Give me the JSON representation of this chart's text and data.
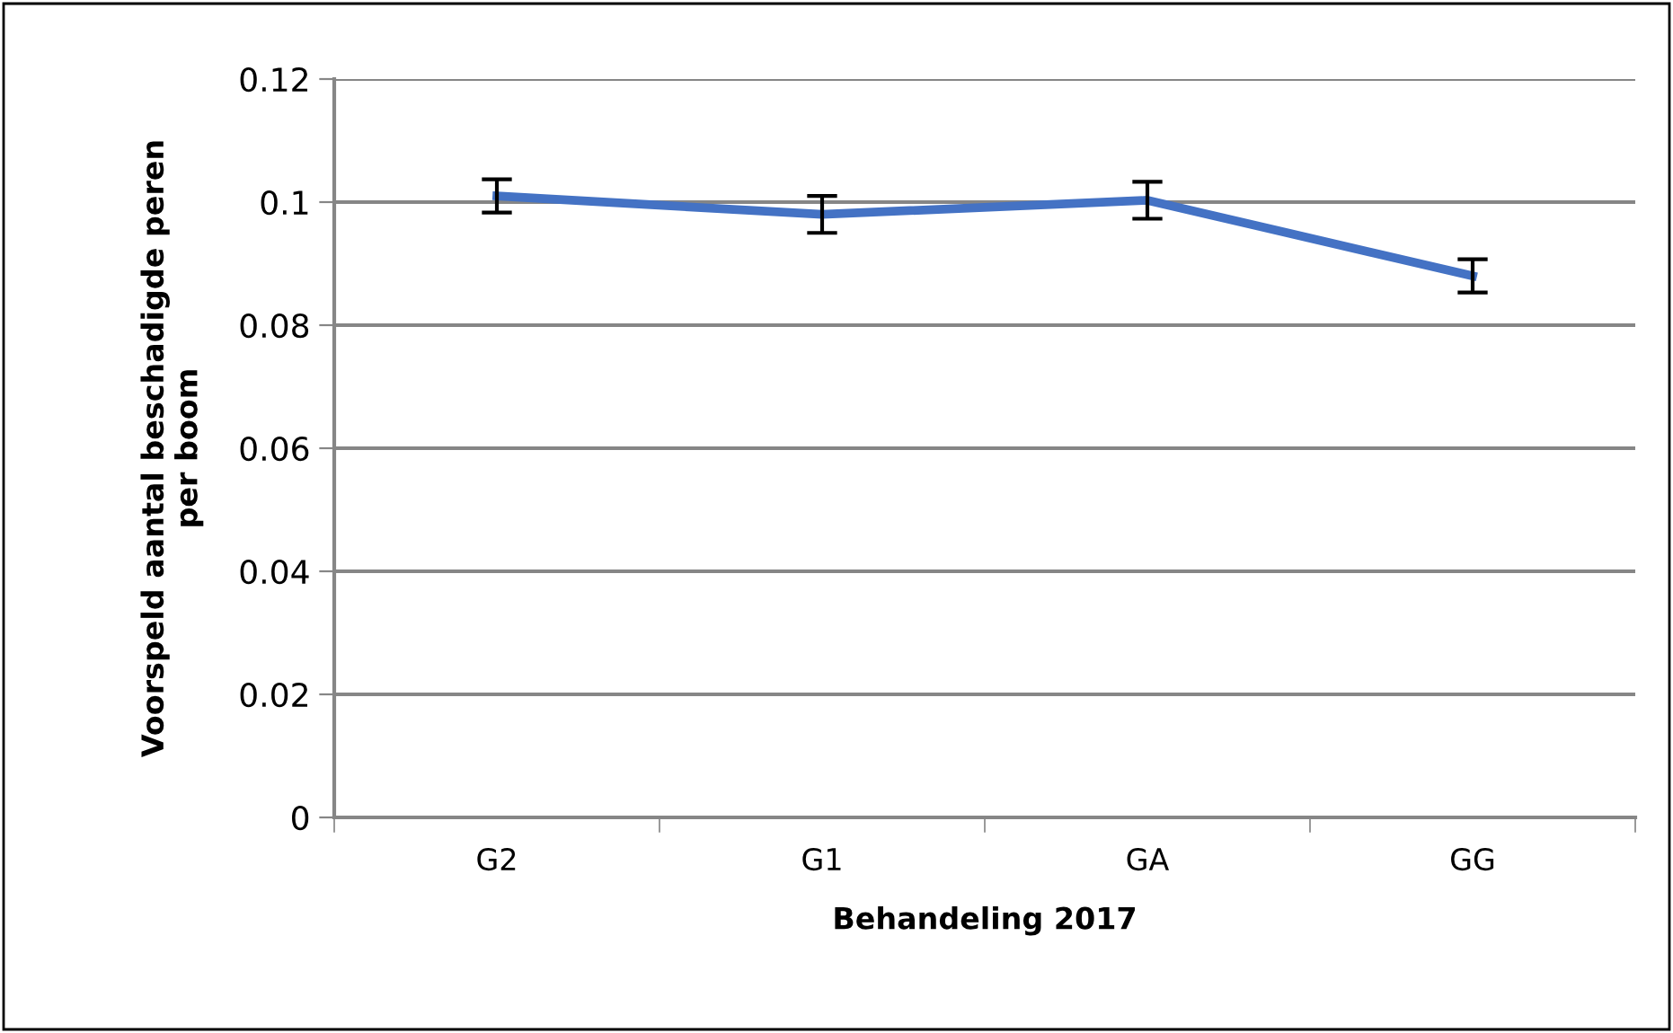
{
  "chart_data": {
    "type": "line",
    "xlabel": "Behandeling 2017",
    "ylabel": "Voorspeld aantal beschadigde peren\nper boom",
    "categories": [
      "G2",
      "G1",
      "GA",
      "GG"
    ],
    "series": [
      {
        "color": "#4472c4",
        "values": [
          0.101,
          0.098,
          0.1003,
          0.088
        ],
        "errors": [
          0.0027,
          0.003,
          0.003,
          0.0027
        ]
      }
    ],
    "ylim": [
      0,
      0.12
    ],
    "yticks": [
      0,
      0.02,
      0.04,
      0.06,
      0.08,
      0.1,
      0.12
    ],
    "grid": "y",
    "marker": "none",
    "line_style": "solid",
    "legend": false
  }
}
